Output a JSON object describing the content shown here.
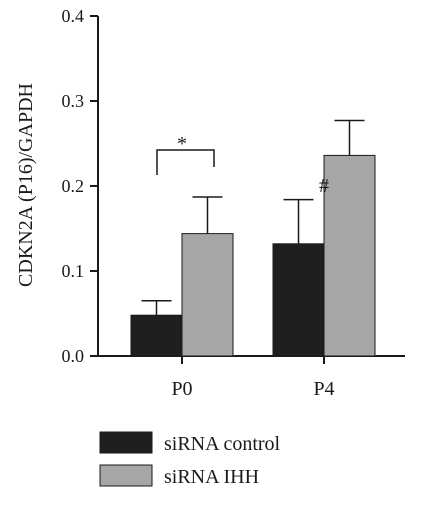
{
  "chart_data": {
    "type": "bar",
    "ylabel": "CDKN2A (P16)/GAPDH",
    "ylim": [
      0.0,
      0.4
    ],
    "yticks": [
      "0.0",
      "0.1",
      "0.2",
      "0.3",
      "0.4"
    ],
    "categories": [
      "P0",
      "P4"
    ],
    "series": [
      {
        "name": "siRNA control",
        "color": "#1f1f1f",
        "values": [
          0.048,
          0.132
        ],
        "errors": [
          0.017,
          0.052
        ]
      },
      {
        "name": "siRNA IHH",
        "color": "#a6a6a6",
        "values": [
          0.144,
          0.236
        ],
        "errors": [
          0.043,
          0.041
        ]
      }
    ],
    "annotations": {
      "bracket_label": "*",
      "p4_control_label": "#"
    },
    "legend_placement": "bottom",
    "grid": false
  }
}
